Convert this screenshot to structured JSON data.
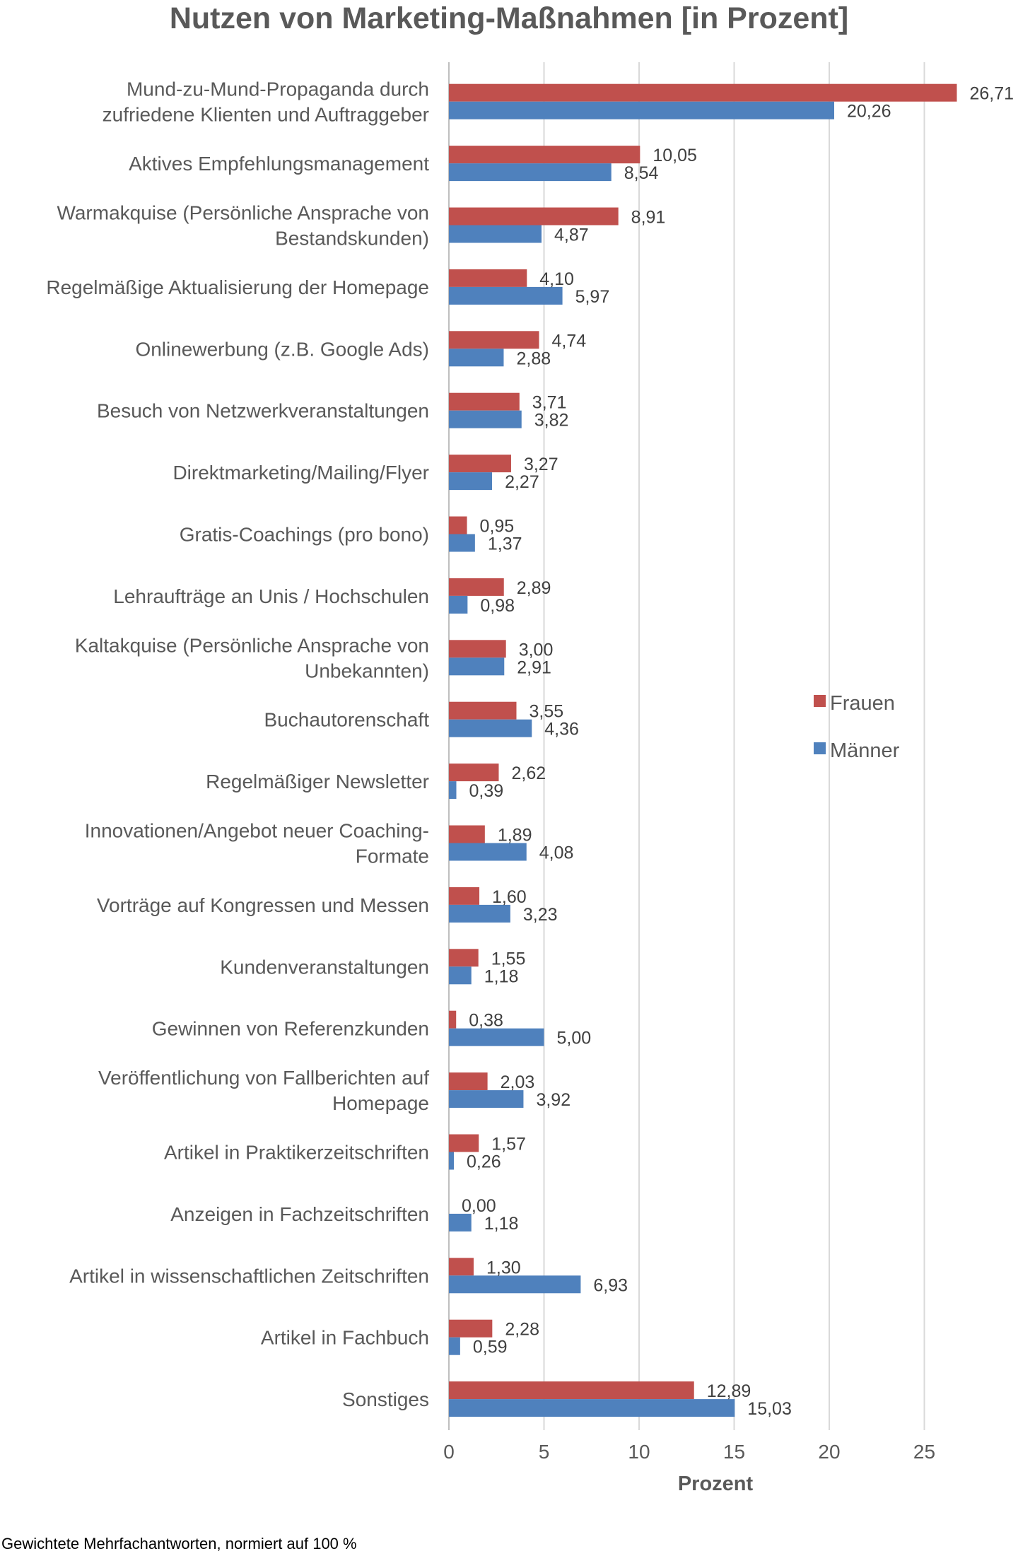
{
  "footnote": "Gewichtete Mehrfachantworten, normiert auf 100 %",
  "chart_data": {
    "type": "bar",
    "orientation": "horizontal",
    "title": "Nutzen von Marketing-Maßnahmen [in Prozent]",
    "xlabel": "Prozent",
    "ylabel": "",
    "xlim": [
      0,
      27.5
    ],
    "xticks": [
      "0",
      "5",
      "10",
      "15",
      "20",
      "25"
    ],
    "grid": true,
    "legend_position": "right",
    "categories": [
      "Mund-zu-Mund-Propaganda durch zufriedene Klienten und Auftraggeber",
      "Aktives Empfehlungsmanagement",
      "Warmakquise (Persönliche Ansprache von Bestandskunden)",
      "Regelmäßige Aktualisierung der Homepage",
      "Onlinewerbung (z.B. Google Ads)",
      "Besuch von Netzwerkveranstaltungen",
      "Direktmarketing/Mailing/Flyer",
      "Gratis-Coachings (pro bono)",
      "Lehraufträge an Unis / Hochschulen",
      "Kaltakquise (Persönliche Ansprache von Unbekannten)",
      "Buchautorenschaft",
      "Regelmäßiger Newsletter",
      "Innovationen/Angebot neuer Coaching-Formate",
      "Vorträge auf Kongressen und Messen",
      "Kundenveranstaltungen",
      "Gewinnen von Referenzkunden",
      "Veröffentlichung von Fallberichten auf Homepage",
      "Artikel in Praktikerzeitschriften",
      "Anzeigen in Fachzeitschriften",
      "Artikel in wissenschaftlichen Zeitschriften",
      "Artikel in Fachbuch",
      "Sonstiges"
    ],
    "category_lines": [
      [
        "Mund-zu-Mund-Propaganda durch",
        "zufriedene Klienten und Auftraggeber"
      ],
      [
        "Aktives Empfehlungsmanagement"
      ],
      [
        "Warmakquise (Persönliche Ansprache von",
        "Bestandskunden)"
      ],
      [
        "Regelmäßige Aktualisierung der Homepage"
      ],
      [
        "Onlinewerbung (z.B. Google Ads)"
      ],
      [
        "Besuch von Netzwerkveranstaltungen"
      ],
      [
        "Direktmarketing/Mailing/Flyer"
      ],
      [
        "Gratis-Coachings (pro bono)"
      ],
      [
        "Lehraufträge an Unis / Hochschulen"
      ],
      [
        "Kaltakquise (Persönliche Ansprache von",
        "Unbekannten)"
      ],
      [
        "Buchautorenschaft"
      ],
      [
        "Regelmäßiger Newsletter"
      ],
      [
        "Innovationen/Angebot neuer Coaching-",
        "Formate"
      ],
      [
        "Vorträge auf Kongressen und Messen"
      ],
      [
        "Kundenveranstaltungen"
      ],
      [
        "Gewinnen von Referenzkunden"
      ],
      [
        "Veröffentlichung von Fallberichten auf",
        "Homepage"
      ],
      [
        "Artikel in Praktikerzeitschriften"
      ],
      [
        "Anzeigen in Fachzeitschriften"
      ],
      [
        "Artikel in wissenschaftlichen Zeitschriften"
      ],
      [
        "Artikel in Fachbuch"
      ],
      [
        "Sonstiges"
      ]
    ],
    "series": [
      {
        "name": "Frauen",
        "color": "#C0504D",
        "values": [
          26.71,
          10.05,
          8.91,
          4.1,
          4.74,
          3.71,
          3.27,
          0.95,
          2.89,
          3.0,
          3.55,
          2.62,
          1.89,
          1.6,
          1.55,
          0.38,
          2.03,
          1.57,
          0.0,
          1.3,
          2.28,
          12.89
        ],
        "labels": [
          "26,71",
          "10,05",
          "8,91",
          "4,10",
          "4,74",
          "3,71",
          "3,27",
          "0,95",
          "2,89",
          "3,00",
          "3,55",
          "2,62",
          "1,89",
          "1,60",
          "1,55",
          "0,38",
          "2,03",
          "1,57",
          "0,00",
          "1,30",
          "2,28",
          "12,89"
        ]
      },
      {
        "name": "Männer",
        "color": "#4F81BD",
        "values": [
          20.26,
          8.54,
          4.87,
          5.97,
          2.88,
          3.82,
          2.27,
          1.37,
          0.98,
          2.91,
          4.36,
          0.39,
          4.08,
          3.23,
          1.18,
          5.0,
          3.92,
          0.26,
          1.18,
          6.93,
          0.59,
          15.03
        ],
        "labels": [
          "20,26",
          "8,54",
          "4,87",
          "5,97",
          "2,88",
          "3,82",
          "2,27",
          "1,37",
          "0,98",
          "2,91",
          "4,36",
          "0,39",
          "4,08",
          "3,23",
          "1,18",
          "5,00",
          "3,92",
          "0,26",
          "1,18",
          "6,93",
          "0,59",
          "15,03"
        ]
      }
    ]
  }
}
